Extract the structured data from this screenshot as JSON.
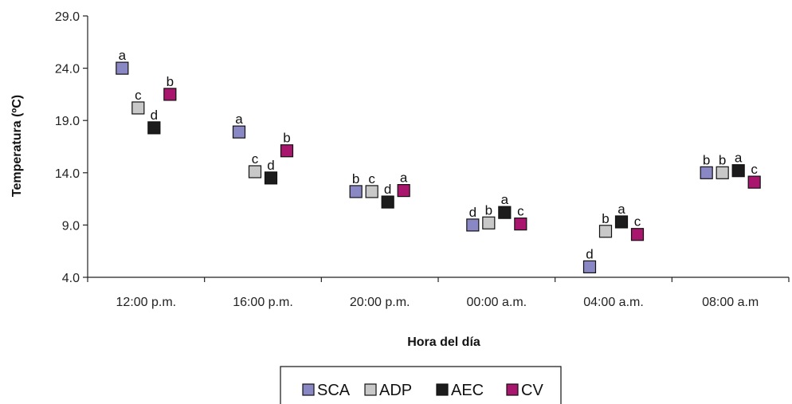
{
  "chart_data": {
    "type": "scatter",
    "title": "",
    "xlabel": "Hora del día",
    "ylabel": "Temperatura (ºC)",
    "categories": [
      "12:00 p.m.",
      "16:00 p.m.",
      "20:00 p.m.",
      "00:00 a.m.",
      "04:00 a.m.",
      "08:00 a.m"
    ],
    "yticks": [
      "4.0",
      "9.0",
      "14.0",
      "19.0",
      "24.0",
      "29.0"
    ],
    "ylim": [
      4.0,
      29.0
    ],
    "grid": false,
    "legend_position": "bottom",
    "series": [
      {
        "name": "SCA",
        "color": "#8a88c4",
        "values": [
          24.0,
          17.9,
          12.2,
          9.0,
          5.0,
          14.0
        ],
        "labels": [
          "a",
          "a",
          "b",
          "d",
          "d",
          "b"
        ]
      },
      {
        "name": "ADP",
        "color": "#c8c8c8",
        "values": [
          20.2,
          14.1,
          12.2,
          9.2,
          8.4,
          14.0
        ],
        "labels": [
          "c",
          "c",
          "c",
          "b",
          "b",
          "b"
        ]
      },
      {
        "name": "AEC",
        "color": "#1c1c1c",
        "values": [
          18.3,
          13.5,
          11.2,
          10.2,
          9.3,
          14.2
        ],
        "labels": [
          "d",
          "d",
          "d",
          "a",
          "a",
          "a"
        ]
      },
      {
        "name": "CV",
        "color": "#a8166e",
        "values": [
          21.5,
          16.1,
          12.3,
          9.1,
          8.1,
          13.1
        ],
        "labels": [
          "b",
          "b",
          "a",
          "c",
          "c",
          "c"
        ]
      }
    ]
  }
}
